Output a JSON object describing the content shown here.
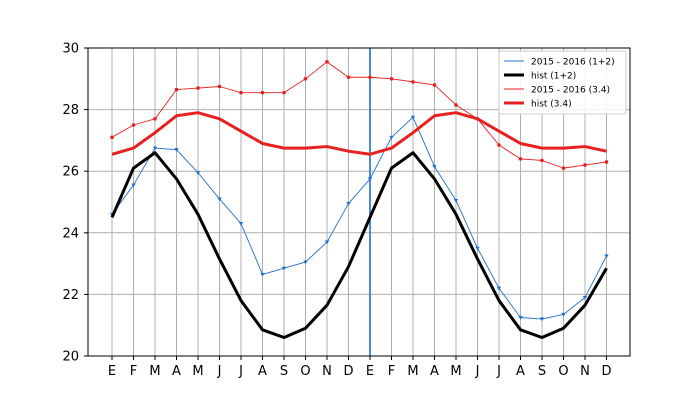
{
  "chart_data": {
    "type": "line",
    "x_tick_labels": [
      "E",
      "F",
      "M",
      "A",
      "M",
      "J",
      "J",
      "A",
      "S",
      "O",
      "N",
      "D",
      "E",
      "F",
      "M",
      "A",
      "M",
      "J",
      "J",
      "A",
      "S",
      "O",
      "N",
      "D"
    ],
    "y_ticks": [
      "20",
      "22",
      "24",
      "26",
      "28",
      "30"
    ],
    "ylim": [
      20,
      30
    ],
    "grid": true,
    "legend_position": "top-right",
    "vertical_marker_between": [
      12,
      13
    ],
    "series": [
      {
        "name": "2015 - 2016 (1+2)",
        "color": "#1f6fd0",
        "style": "thin-with-markers",
        "values": [
          24.6,
          25.55,
          26.75,
          26.7,
          25.95,
          25.1,
          24.3,
          22.65,
          22.85,
          23.05,
          23.7,
          24.95,
          25.75,
          27.1,
          27.75,
          26.15,
          25.05,
          23.5,
          22.2,
          21.25,
          21.2,
          21.35,
          21.9,
          23.25
        ]
      },
      {
        "name": "hist (1+2)",
        "color": "#000000",
        "style": "thick",
        "values": [
          24.5,
          26.1,
          26.6,
          25.75,
          24.6,
          23.15,
          21.8,
          20.85,
          20.6,
          20.9,
          21.65,
          22.9,
          24.5,
          26.1,
          26.6,
          25.75,
          24.6,
          23.15,
          21.8,
          20.85,
          20.6,
          20.9,
          21.65,
          22.85
        ]
      },
      {
        "name": "2015 - 2016 (3.4)",
        "color": "#e82020",
        "style": "thin-with-markers",
        "values": [
          27.1,
          27.5,
          27.7,
          28.65,
          28.7,
          28.75,
          28.55,
          28.55,
          28.55,
          29.0,
          29.55,
          29.05,
          29.05,
          29.0,
          28.9,
          28.8,
          28.15,
          27.7,
          26.85,
          26.4,
          26.35,
          26.1,
          26.2,
          26.3
        ]
      },
      {
        "name": "hist (3.4)",
        "color": "#e82020",
        "style": "thick",
        "values": [
          26.55,
          26.75,
          27.25,
          27.8,
          27.9,
          27.7,
          27.3,
          26.9,
          26.75,
          26.75,
          26.8,
          26.65,
          26.55,
          26.75,
          27.25,
          27.8,
          27.9,
          27.7,
          27.3,
          26.9,
          26.75,
          26.75,
          26.8,
          26.65
        ]
      }
    ]
  }
}
